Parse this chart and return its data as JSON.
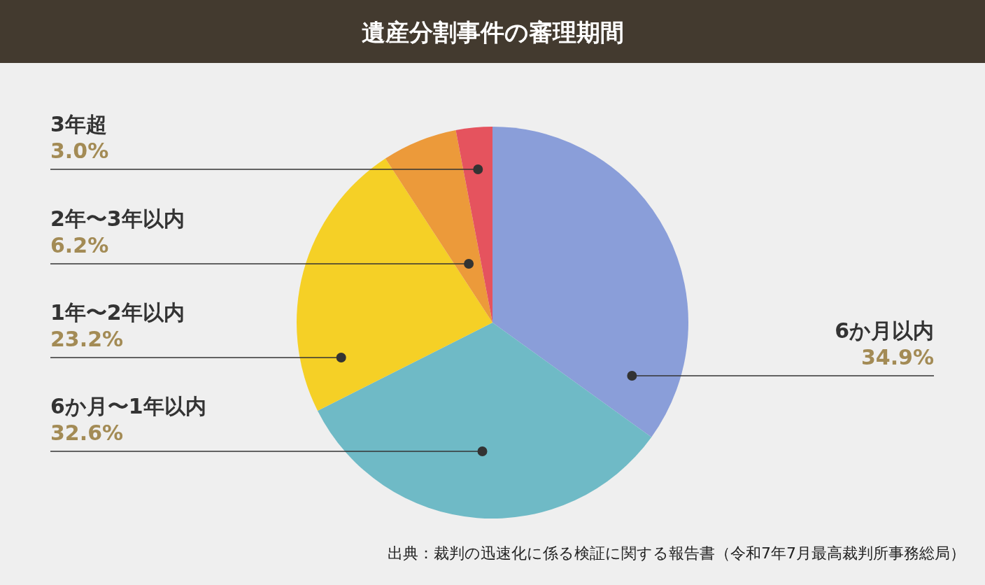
{
  "chart_data": {
    "type": "pie",
    "title": "遺産分割事件の審理期間",
    "categories": [
      "6か月以内",
      "6か月〜1年以内",
      "1年〜2年以内",
      "2年〜3年以内",
      "3年超"
    ],
    "values": [
      34.9,
      32.6,
      23.2,
      6.2,
      3.0
    ],
    "value_labels": [
      "34.9%",
      "32.6%",
      "23.2%",
      "6.2%",
      "3.0%"
    ],
    "colors": [
      "#8a9ed9",
      "#6fbac6",
      "#f5d026",
      "#ec9a3a",
      "#e5535e"
    ],
    "annotations": [
      "出典：裁判の迅速化に係る検証に関する報告書（令和7年7月最高裁判所事務総局）"
    ]
  }
}
